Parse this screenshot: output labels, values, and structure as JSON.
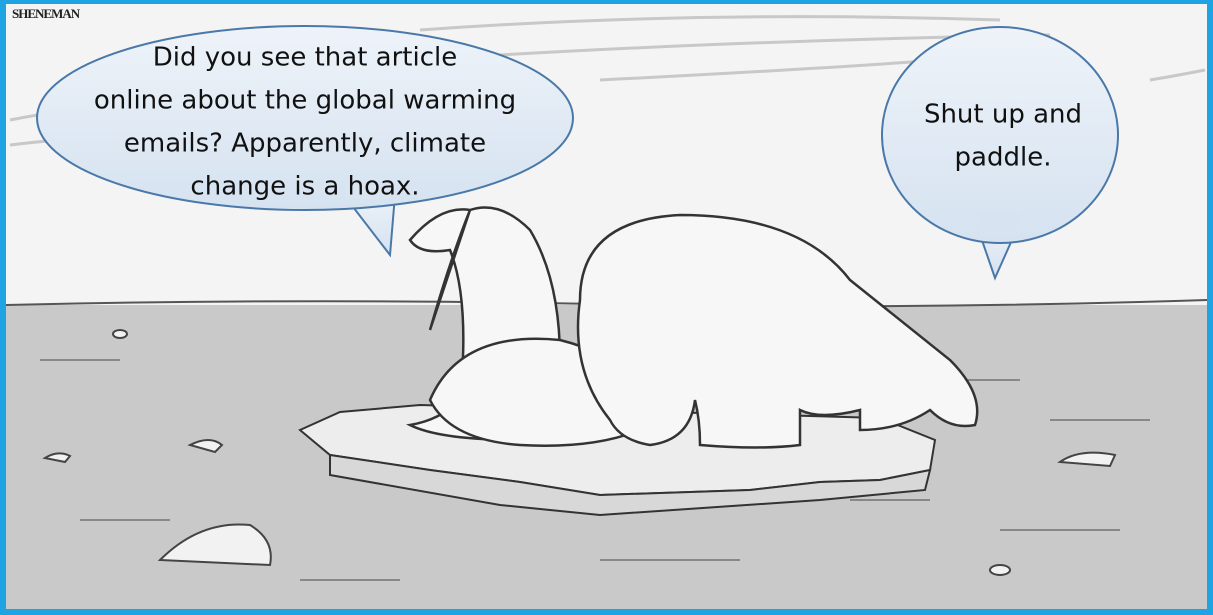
{
  "signature": "SHENEMAN",
  "bubbles": [
    {
      "lines": [
        "Did you see that article",
        "online about the global warming",
        "emails? Apparently, climate",
        "change is a hoax."
      ]
    },
    {
      "lines": [
        "Shut up and",
        "paddle."
      ]
    }
  ]
}
